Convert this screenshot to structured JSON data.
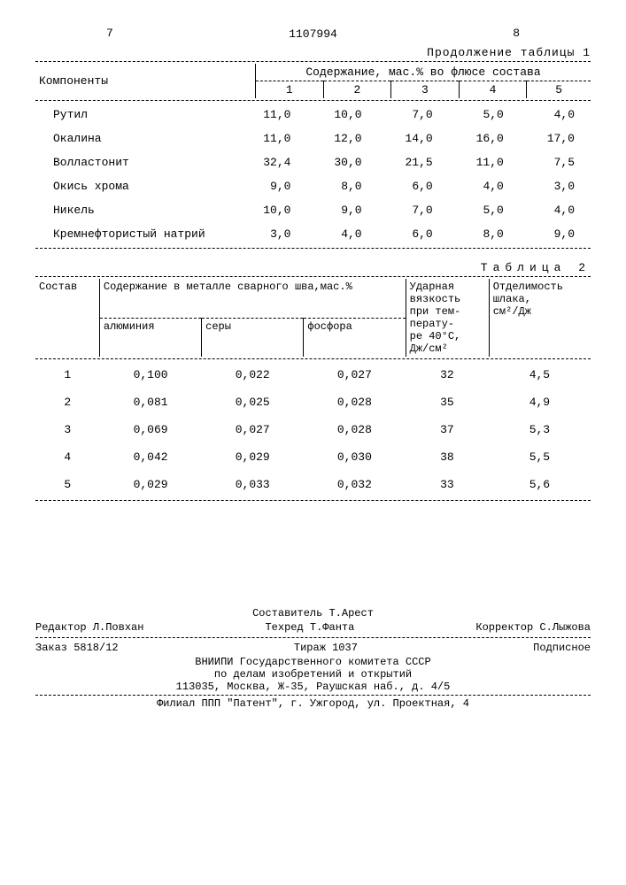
{
  "header": {
    "page_left": "7",
    "doc_number": "1107994",
    "page_right": "8",
    "continuation": "Продолжение таблицы 1"
  },
  "table1": {
    "col_components": "Компоненты",
    "col_content": "Содержание, мас.% во флюсе состава",
    "cols": [
      "1",
      "2",
      "3",
      "4",
      "5"
    ],
    "rows": [
      {
        "name": "Рутил",
        "v": [
          "11,0",
          "10,0",
          "7,0",
          "5,0",
          "4,0"
        ]
      },
      {
        "name": "Окалина",
        "v": [
          "11,0",
          "12,0",
          "14,0",
          "16,0",
          "17,0"
        ]
      },
      {
        "name": "Волластонит",
        "v": [
          "32,4",
          "30,0",
          "21,5",
          "11,0",
          "7,5"
        ]
      },
      {
        "name": "Окись хрома",
        "v": [
          "9,0",
          "8,0",
          "6,0",
          "4,0",
          "3,0"
        ]
      },
      {
        "name": "Никель",
        "v": [
          "10,0",
          "9,0",
          "7,0",
          "5,0",
          "4,0"
        ]
      },
      {
        "name": "Кремнефтористый натрий",
        "v": [
          "3,0",
          "4,0",
          "6,0",
          "8,0",
          "9,0"
        ]
      }
    ]
  },
  "table2": {
    "title": "Таблица 2",
    "h_sostav": "Состав",
    "h_content": "Содержание в металле сварного шва,мас.%",
    "h_al": "алюминия",
    "h_s": "серы",
    "h_p": "фосфора",
    "h_impact_a": "Ударная",
    "h_impact_b": "вязкость",
    "h_impact_c": "при тем-",
    "h_impact_d": "перату-",
    "h_impact_e": "ре 40°С,",
    "h_impact_f": "Дж/см²",
    "h_sep_a": "Отделимость",
    "h_sep_b": "шлака,",
    "h_sep_c": "см²/Дж",
    "rows": [
      {
        "n": "1",
        "al": "0,100",
        "s": "0,022",
        "p": "0,027",
        "imp": "32",
        "sep": "4,5"
      },
      {
        "n": "2",
        "al": "0,081",
        "s": "0,025",
        "p": "0,028",
        "imp": "35",
        "sep": "4,9"
      },
      {
        "n": "3",
        "al": "0,069",
        "s": "0,027",
        "p": "0,028",
        "imp": "37",
        "sep": "5,3"
      },
      {
        "n": "4",
        "al": "0,042",
        "s": "0,029",
        "p": "0,030",
        "imp": "38",
        "sep": "5,5"
      },
      {
        "n": "5",
        "al": "0,029",
        "s": "0,033",
        "p": "0,032",
        "imp": "33",
        "sep": "5,6"
      }
    ]
  },
  "footer": {
    "compiler": "Составитель Т.Арест",
    "editor": "Редактор Л.Повхан",
    "tech": "Техред Т.Фанта",
    "corrector": "Корректор С.Лыжова",
    "order": "Заказ 5818/12",
    "tirazh": "Тираж 1037",
    "podpisnoe": "Подписное",
    "org1": "ВНИИПИ Государственного комитета СССР",
    "org2": "по делам изобретений и открытий",
    "org3": "113035, Москва, Ж-35, Раушская наб., д. 4/5",
    "filial": "Филиал ППП \"Патент\", г. Ужгород, ул. Проектная, 4"
  }
}
